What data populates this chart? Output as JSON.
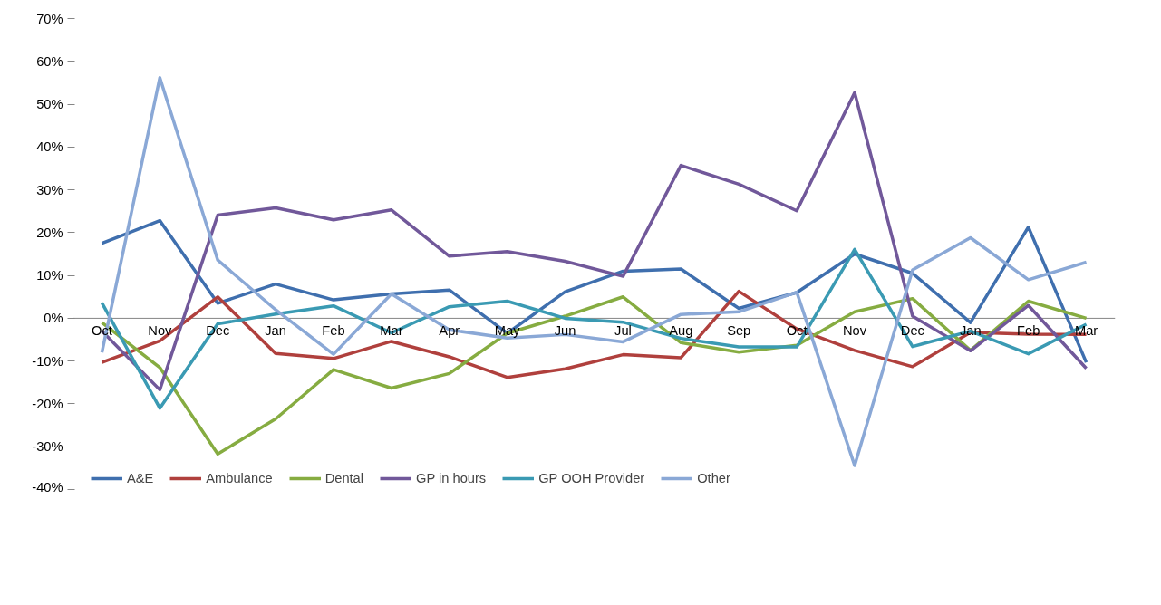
{
  "chart_data": {
    "type": "line",
    "categories": [
      "Oct",
      "Nov",
      "Dec",
      "Jan",
      "Feb",
      "Mar",
      "Apr",
      "May",
      "Jun",
      "Jul",
      "Aug",
      "Sep",
      "Oct",
      "Nov",
      "Dec",
      "Jan",
      "Feb",
      "Mar"
    ],
    "series": [
      {
        "name": "A&E",
        "color": "#3f6fae",
        "values": [
          17.5,
          22.8,
          3.5,
          8,
          4.3,
          5.7,
          6.6,
          -3.5,
          6.2,
          11,
          11.5,
          2.3,
          6,
          15,
          10.5,
          -1,
          21.3,
          -10.3
        ]
      },
      {
        "name": "Ambulance",
        "color": "#b0403d",
        "values": [
          -10.3,
          -5.3,
          5,
          -8.2,
          -9.4,
          -5.4,
          -9,
          -13.8,
          -11.8,
          -8.5,
          -9.2,
          6.3,
          -2.5,
          -7.5,
          -11.3,
          -3.3,
          -3.7,
          -3.8
        ]
      },
      {
        "name": "Dental",
        "color": "#86ac41",
        "values": [
          -1,
          -11.5,
          -31.7,
          -23.5,
          -12,
          -16.3,
          -12.9,
          -3.5,
          0.5,
          5,
          -5.7,
          -7.9,
          -6.3,
          1.5,
          4.6,
          -7.5,
          4,
          0
        ]
      },
      {
        "name": "GP in hours",
        "color": "#71589a",
        "values": [
          -3,
          -16.7,
          24.1,
          25.8,
          23,
          25.3,
          14.5,
          15.6,
          13.3,
          9.8,
          35.7,
          31.3,
          25.1,
          52.7,
          0.5,
          -7.6,
          3,
          -11.7
        ]
      },
      {
        "name": "GP OOH Provider",
        "color": "#3a9ab3",
        "values": [
          3.6,
          -21,
          -1.3,
          1,
          2.9,
          -3.4,
          2.7,
          4,
          0,
          -0.9,
          -4.7,
          -6.7,
          -6.7,
          16.1,
          -6.6,
          -3,
          -8.3,
          -1.4
        ]
      },
      {
        "name": "Other",
        "color": "#8aa8d6",
        "values": [
          -8,
          56.2,
          13.6,
          2,
          -8.4,
          5.7,
          -2.7,
          -4.6,
          -3.8,
          -5.5,
          0.9,
          1.5,
          6.1,
          -34.4,
          11.3,
          18.8,
          9,
          13.1
        ]
      }
    ],
    "ylim": [
      -40,
      70
    ],
    "yticks": [
      {
        "value": -40,
        "label": "-40%"
      },
      {
        "value": -30,
        "label": "-30%"
      },
      {
        "value": -20,
        "label": "-20%"
      },
      {
        "value": -10,
        "label": "-10%"
      },
      {
        "value": 0,
        "label": "0%"
      },
      {
        "value": 10,
        "label": "10%"
      },
      {
        "value": 20,
        "label": "20%"
      },
      {
        "value": 30,
        "label": "30%"
      },
      {
        "value": 40,
        "label": "40%"
      },
      {
        "value": 50,
        "label": "50%"
      },
      {
        "value": 60,
        "label": "60%"
      },
      {
        "value": 70,
        "label": "70%"
      }
    ],
    "grid": false,
    "legend": "bottom",
    "marker": "none",
    "line_style": "solid"
  }
}
